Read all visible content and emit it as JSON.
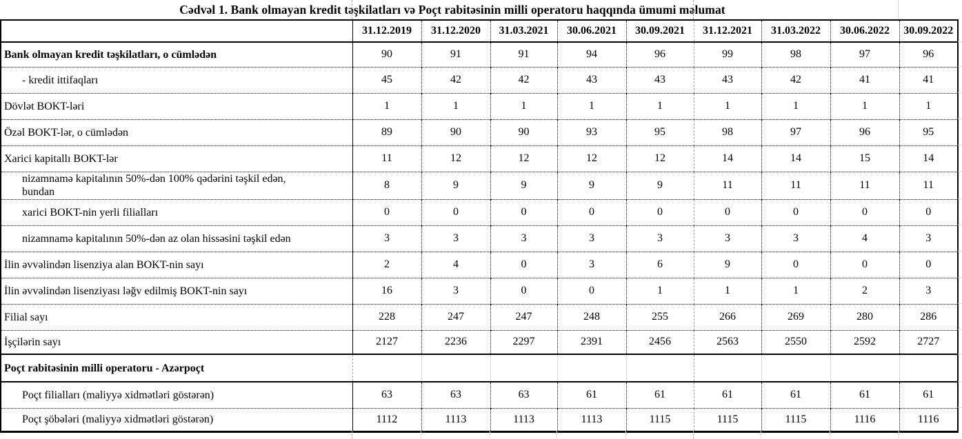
{
  "title": "Cədvəl 1. Bank olmayan kredit təşkilatları və Poçt rabitəsinin milli operatoru haqqında ümumi məlumat",
  "colors": {
    "border": "#000000",
    "gridline": "#d9d9d9",
    "page_break_line": "#a6a6a6",
    "text": "#000000",
    "background": "#ffffff"
  },
  "table": {
    "corner_label": "",
    "columns": [
      "31.12.2019",
      "31.12.2020",
      "31.03.2021",
      "30.06.2021",
      "30.09.2021",
      "31.12.2021",
      "31.03.2022",
      "30.06.2022",
      "30.09.2022"
    ],
    "rows": [
      {
        "label": "Bank olmayan kredit təşkilatları, o cümlədən",
        "bold": true,
        "indent": 0,
        "section": false,
        "values": [
          "90",
          "91",
          "91",
          "94",
          "96",
          "99",
          "98",
          "97",
          "96"
        ]
      },
      {
        "label": "- kredit ittifaqları",
        "bold": false,
        "indent": 1,
        "section": false,
        "values": [
          "45",
          "42",
          "42",
          "43",
          "43",
          "43",
          "42",
          "41",
          "41"
        ]
      },
      {
        "label": "Dövlət BOKT-ləri",
        "bold": false,
        "indent": 0,
        "section": false,
        "values": [
          "1",
          "1",
          "1",
          "1",
          "1",
          "1",
          "1",
          "1",
          "1"
        ]
      },
      {
        "label": "Özəl BOKT-lər, o cümlədən",
        "bold": false,
        "indent": 0,
        "section": false,
        "values": [
          "89",
          "90",
          "90",
          "93",
          "95",
          "98",
          "97",
          "96",
          "95"
        ]
      },
      {
        "label": "Xarici kapitallı BOKT-lər",
        "bold": false,
        "indent": 0,
        "section": false,
        "values": [
          "11",
          "12",
          "12",
          "12",
          "12",
          "14",
          "14",
          "15",
          "14"
        ]
      },
      {
        "label": "nizamnamə kapitalının 50%-dən 100% qədərini təşkil edən,\nbundan",
        "bold": false,
        "indent": 1,
        "section": false,
        "values": [
          "8",
          "9",
          "9",
          "9",
          "9",
          "11",
          "11",
          "11",
          "11"
        ]
      },
      {
        "label": "xarici BOKT-nin yerli filialları",
        "bold": false,
        "indent": 1,
        "section": false,
        "values": [
          "0",
          "0",
          "0",
          "0",
          "0",
          "0",
          "0",
          "0",
          "0"
        ]
      },
      {
        "label": "nizamnamə kapitalının 50%-dən az olan hissəsini  təşkil edən",
        "bold": false,
        "indent": 1,
        "section": false,
        "values": [
          "3",
          "3",
          "3",
          "3",
          "3",
          "3",
          "3",
          "4",
          "3"
        ]
      },
      {
        "label": "İlin əvvəlindən lisenziya alan BOKT-nin sayı",
        "bold": false,
        "indent": 0,
        "section": false,
        "values": [
          "2",
          "4",
          "0",
          "3",
          "6",
          "9",
          "0",
          "0",
          "0"
        ]
      },
      {
        "label": "İlin əvvəlindən lisenziyası ləğv edilmiş BOKT-nin sayı",
        "bold": false,
        "indent": 0,
        "section": false,
        "values": [
          "16",
          "3",
          "0",
          "0",
          "1",
          "1",
          "1",
          "2",
          "3"
        ]
      },
      {
        "label": "Filial sayı",
        "bold": false,
        "indent": 0,
        "section": false,
        "values": [
          "228",
          "247",
          "247",
          "248",
          "255",
          "266",
          "269",
          "280",
          "286"
        ]
      },
      {
        "label": "İşçilərin sayı",
        "bold": false,
        "indent": 0,
        "section": false,
        "values": [
          "2127",
          "2236",
          "2297",
          "2391",
          "2456",
          "2563",
          "2550",
          "2592",
          "2727"
        ]
      },
      {
        "label": "Poçt rabitəsinin milli operatoru - Azərpoçt",
        "bold": true,
        "indent": 0,
        "section": true,
        "values": [
          "",
          "",
          "",
          "",
          "",
          "",
          "",
          "",
          ""
        ]
      },
      {
        "label": "Poçt filialları (maliyyə xidmətləri göstərən)",
        "bold": false,
        "indent": 1,
        "section": false,
        "values": [
          "63",
          "63",
          "63",
          "61",
          "61",
          "61",
          "61",
          "61",
          "61"
        ]
      },
      {
        "label": "Poçt şöbələri (maliyyə xidmətləri göstərən)",
        "bold": false,
        "indent": 1,
        "section": false,
        "values": [
          "1112",
          "1113",
          "1113",
          "1113",
          "1115",
          "1115",
          "1115",
          "1116",
          "1116"
        ]
      }
    ]
  }
}
